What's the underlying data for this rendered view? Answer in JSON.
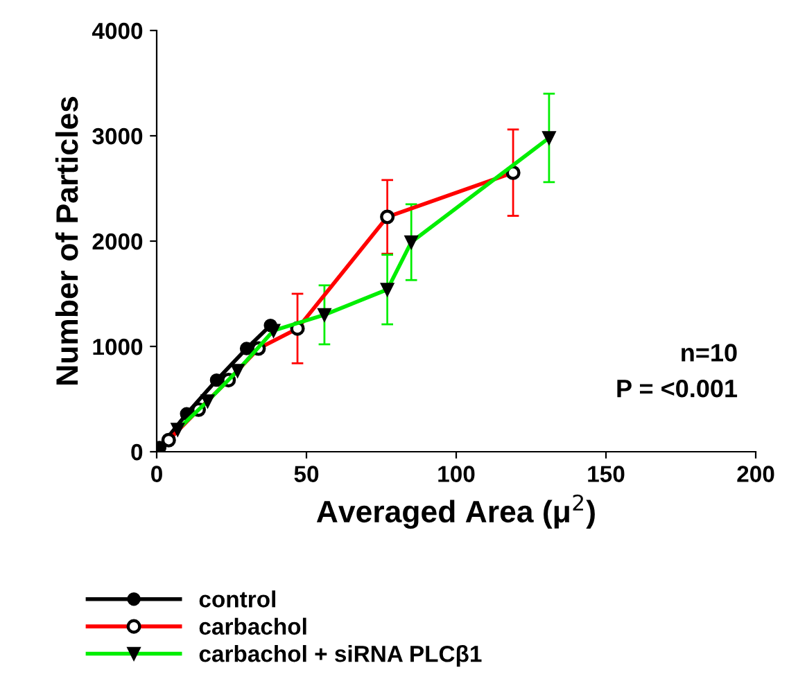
{
  "chart_data": {
    "type": "line",
    "xlabel": "Averaged Area (μ$^{2}$)",
    "ylabel": "Number of Particles",
    "xlim": [
      0,
      200
    ],
    "ylim": [
      0,
      4000
    ],
    "xticks": [
      0,
      50,
      100,
      150,
      200
    ],
    "yticks": [
      0,
      1000,
      2000,
      3000,
      4000
    ],
    "grid": false,
    "legend": "bottom",
    "line_style": "solid",
    "annotations": [
      "n=10",
      "P = <0.001"
    ],
    "series": [
      {
        "name": "control",
        "color": "#000000",
        "marker": "circle",
        "x": [
          1,
          10,
          20,
          30,
          38
        ],
        "values": [
          40,
          360,
          680,
          980,
          1200
        ]
      },
      {
        "name": "carbachol",
        "color": "#ff0000",
        "marker": "circle",
        "x": [
          4,
          14,
          24,
          34,
          47,
          77,
          119
        ],
        "values": [
          110,
          400,
          680,
          980,
          1170,
          2230,
          2650
        ],
        "errors": [
          null,
          null,
          null,
          null,
          330,
          350,
          410
        ]
      },
      {
        "name": "carbachol + siRNA PLCβ1",
        "color": "#00ee00",
        "marker": "triangle",
        "x": [
          7,
          17,
          27,
          39,
          56,
          77,
          85,
          131
        ],
        "values": [
          210,
          480,
          770,
          1150,
          1300,
          1540,
          1990,
          2980
        ],
        "errors": [
          null,
          null,
          null,
          null,
          280,
          330,
          360,
          420
        ]
      }
    ]
  }
}
